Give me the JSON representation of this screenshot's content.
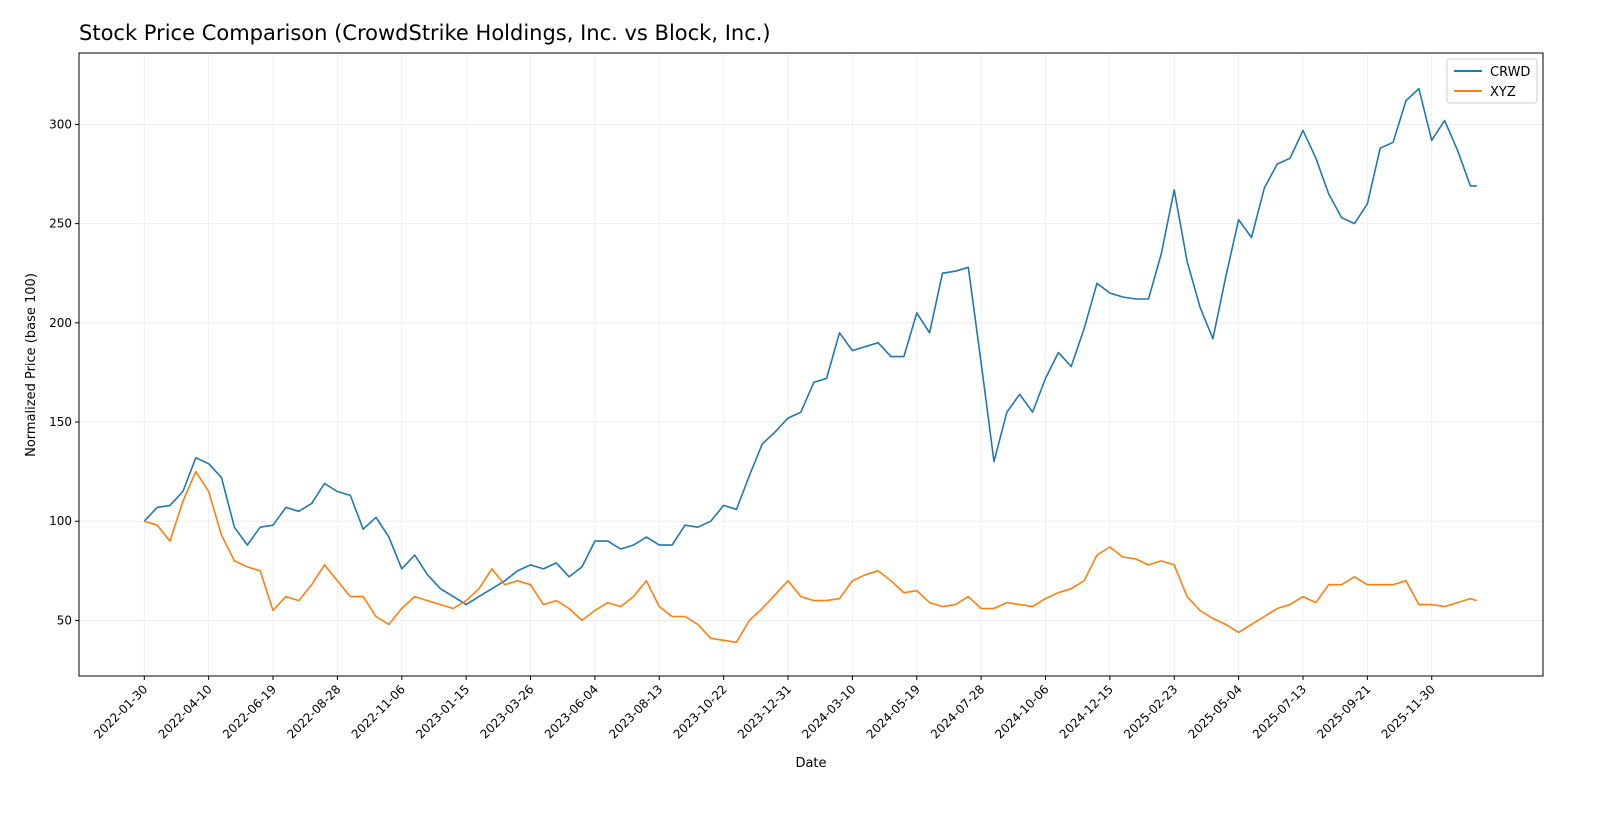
{
  "chart_data": {
    "type": "line",
    "title": "Stock Price Comparison (CrowdStrike Holdings, Inc. vs Block, Inc.)",
    "xlabel": "Date",
    "ylabel": "Normalized Price (base 100)",
    "ylim": [
      22,
      336
    ],
    "xlim": [
      "2021-11-20",
      "2026-03-31"
    ],
    "grid": true,
    "legend_placement": "top-right",
    "xticks": [
      "2022-01-30",
      "2022-04-10",
      "2022-06-19",
      "2022-08-28",
      "2022-11-06",
      "2023-01-15",
      "2023-03-26",
      "2023-06-04",
      "2023-08-13",
      "2023-10-22",
      "2023-12-31",
      "2024-03-10",
      "2024-05-19",
      "2024-07-28",
      "2024-10-06",
      "2024-12-15",
      "2025-02-23",
      "2025-05-04",
      "2025-07-13",
      "2025-09-21",
      "2025-11-30"
    ],
    "yticks": [
      50,
      100,
      150,
      200,
      250,
      300
    ],
    "x": [
      "2022-01-30",
      "2022-02-13",
      "2022-02-27",
      "2022-03-13",
      "2022-03-27",
      "2022-04-10",
      "2022-04-24",
      "2022-05-08",
      "2022-05-22",
      "2022-06-05",
      "2022-06-19",
      "2022-07-03",
      "2022-07-17",
      "2022-07-31",
      "2022-08-14",
      "2022-08-28",
      "2022-09-11",
      "2022-09-25",
      "2022-10-09",
      "2022-10-23",
      "2022-11-06",
      "2022-11-20",
      "2022-12-04",
      "2022-12-18",
      "2023-01-01",
      "2023-01-15",
      "2023-01-29",
      "2023-02-12",
      "2023-02-26",
      "2023-03-12",
      "2023-03-26",
      "2023-04-09",
      "2023-04-23",
      "2023-05-07",
      "2023-05-21",
      "2023-06-04",
      "2023-06-18",
      "2023-07-02",
      "2023-07-16",
      "2023-07-30",
      "2023-08-13",
      "2023-08-27",
      "2023-09-10",
      "2023-09-24",
      "2023-10-08",
      "2023-10-22",
      "2023-11-05",
      "2023-11-19",
      "2023-12-03",
      "2023-12-17",
      "2023-12-31",
      "2024-01-14",
      "2024-01-28",
      "2024-02-11",
      "2024-02-25",
      "2024-03-10",
      "2024-03-24",
      "2024-04-07",
      "2024-04-21",
      "2024-05-05",
      "2024-05-19",
      "2024-06-02",
      "2024-06-16",
      "2024-06-30",
      "2024-07-14",
      "2024-07-28",
      "2024-08-11",
      "2024-08-25",
      "2024-09-08",
      "2024-09-22",
      "2024-10-06",
      "2024-10-20",
      "2024-11-03",
      "2024-11-17",
      "2024-12-01",
      "2024-12-15",
      "2024-12-29",
      "2025-01-12",
      "2025-01-26",
      "2025-02-09",
      "2025-02-23",
      "2025-03-09",
      "2025-03-23",
      "2025-04-06",
      "2025-04-20",
      "2025-05-04",
      "2025-05-18",
      "2025-06-01",
      "2025-06-15",
      "2025-06-29",
      "2025-07-13",
      "2025-07-27",
      "2025-08-10",
      "2025-08-24",
      "2025-09-07",
      "2025-09-21",
      "2025-10-05",
      "2025-10-19",
      "2025-11-02",
      "2025-11-16",
      "2025-11-30",
      "2025-12-14",
      "2025-12-28",
      "2026-01-11",
      "2026-01-18"
    ],
    "series": [
      {
        "name": "CRWD",
        "color": "#1f77b4",
        "values": [
          100,
          107,
          108,
          115,
          132,
          129,
          122,
          97,
          88,
          97,
          98,
          107,
          105,
          109,
          119,
          115,
          113,
          96,
          102,
          92,
          76,
          83,
          73,
          66,
          62,
          58,
          62,
          66,
          70,
          75,
          78,
          76,
          79,
          72,
          77,
          90,
          90,
          86,
          88,
          92,
          88,
          88,
          98,
          97,
          100,
          108,
          106,
          123,
          139,
          145,
          152,
          155,
          170,
          172,
          195,
          186,
          188,
          190,
          183,
          183,
          205,
          195,
          225,
          226,
          228,
          180,
          130,
          155,
          164,
          155,
          172,
          185,
          178,
          197,
          220,
          215,
          213,
          212,
          212,
          235,
          267,
          231,
          208,
          192,
          223,
          252,
          243,
          268,
          280,
          283,
          297,
          283,
          265,
          253,
          250,
          260,
          288,
          291,
          312,
          318,
          292,
          302,
          287,
          269,
          269
        ]
      },
      {
        "name": "XYZ",
        "color": "#ff7f0e",
        "values": [
          100,
          98,
          90,
          110,
          125,
          115,
          93,
          80,
          77,
          75,
          55,
          62,
          60,
          68,
          78,
          70,
          62,
          62,
          52,
          48,
          56,
          62,
          60,
          58,
          56,
          60,
          66,
          76,
          68,
          70,
          68,
          58,
          60,
          56,
          50,
          55,
          59,
          57,
          62,
          70,
          57,
          52,
          52,
          48,
          41,
          40,
          39,
          50,
          56,
          63,
          70,
          62,
          60,
          60,
          61,
          70,
          73,
          75,
          70,
          64,
          65,
          59,
          57,
          58,
          62,
          56,
          56,
          59,
          58,
          57,
          61,
          64,
          66,
          70,
          83,
          87,
          82,
          81,
          78,
          80,
          78,
          62,
          55,
          51,
          48,
          44,
          48,
          52,
          56,
          58,
          62,
          59,
          68,
          68,
          72,
          68,
          68,
          68,
          70,
          58,
          58,
          57,
          59,
          61,
          60
        ]
      }
    ]
  }
}
